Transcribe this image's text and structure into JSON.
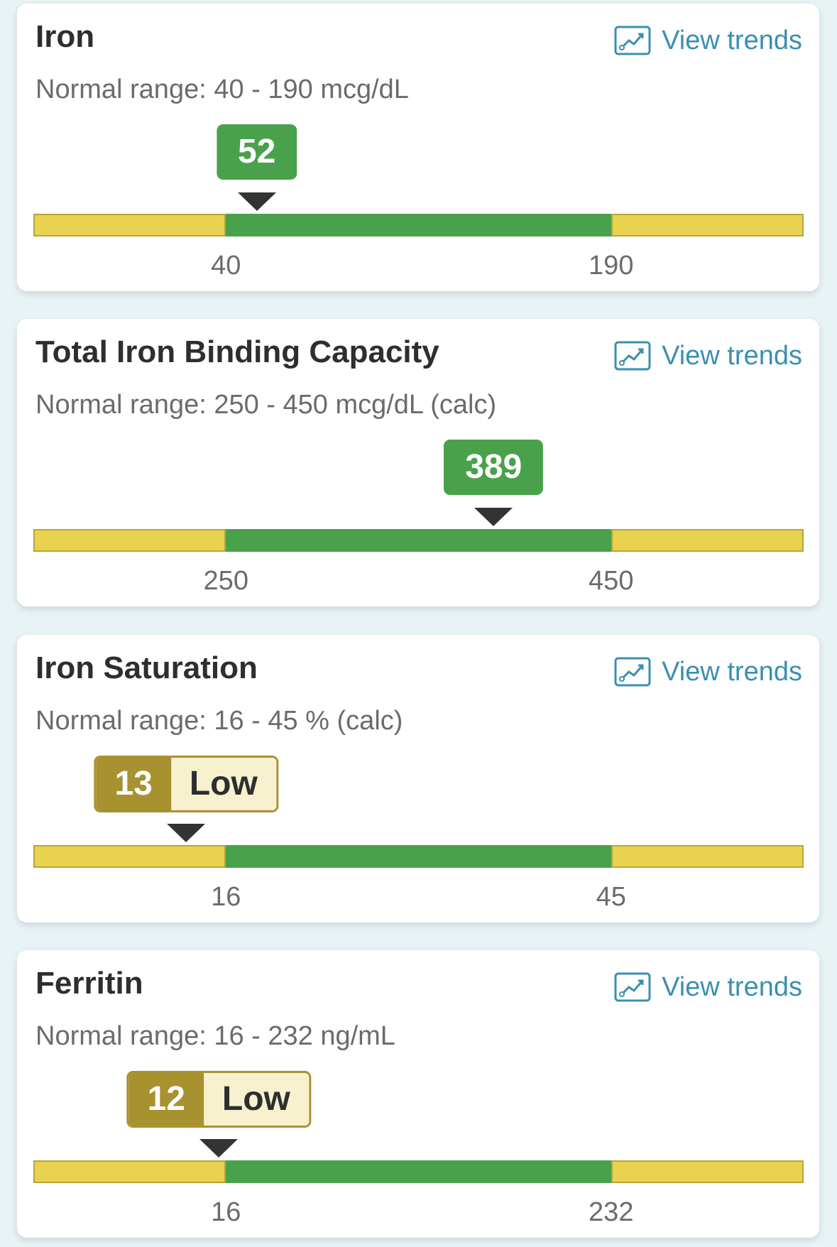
{
  "view_trends_label": "View trends",
  "colors": {
    "normal": "#4aa14b",
    "low": "#a8912f",
    "band": "#e9d24f",
    "link": "#3a8fb2"
  },
  "cards": [
    {
      "title": "Iron",
      "range": "Normal range: 40 - 190 mcg/dL",
      "value": 52,
      "value_label": "52",
      "low": 40,
      "high": 190,
      "low_label": "40",
      "high_label": "190",
      "status": ""
    },
    {
      "title": "Total Iron Binding Capacity",
      "range": "Normal range: 250 - 450 mcg/dL (calc)",
      "value": 389,
      "value_label": "389",
      "low": 250,
      "high": 450,
      "low_label": "250",
      "high_label": "450",
      "status": ""
    },
    {
      "title": "Iron Saturation",
      "range": "Normal range: 16 - 45 % (calc)",
      "value": 13,
      "value_label": "13",
      "low": 16,
      "high": 45,
      "low_label": "16",
      "high_label": "45",
      "status": "Low"
    },
    {
      "title": "Ferritin",
      "range": "Normal range: 16 - 232 ng/mL",
      "value": 12,
      "value_label": "12",
      "low": 16,
      "high": 232,
      "low_label": "16",
      "high_label": "232",
      "status": "Low"
    }
  ]
}
